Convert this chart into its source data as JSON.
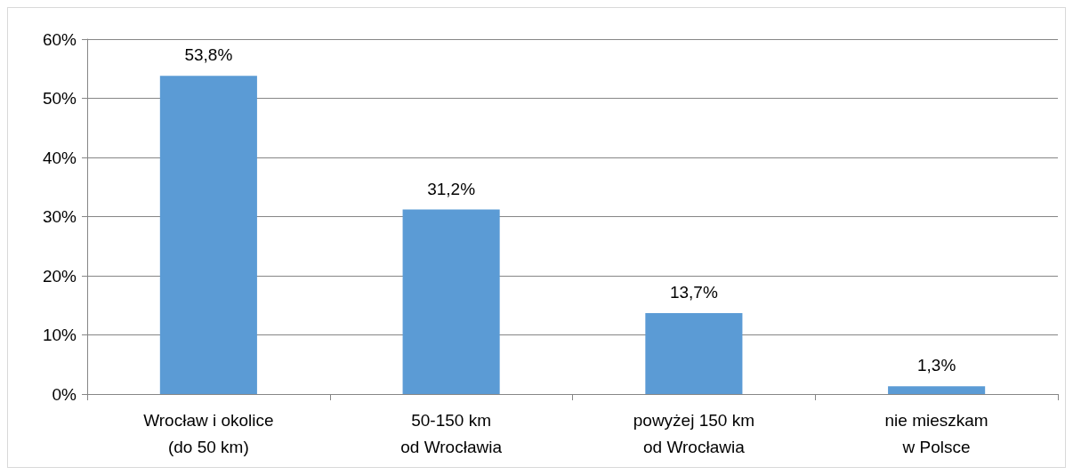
{
  "chart_data": {
    "type": "bar",
    "categories": [
      "Wrocław i okolice\n(do 50 km)",
      "50-150 km\nod Wrocławia",
      "powyżej 150 km\nod Wrocławia",
      "nie mieszkam\nw Polsce"
    ],
    "values": [
      53.8,
      31.2,
      13.7,
      1.3
    ],
    "value_labels": [
      "53,8%",
      "31,2%",
      "13,7%",
      "1,3%"
    ],
    "color": "#5b9bd5",
    "ylim": [
      0,
      60
    ],
    "yticks": [
      {
        "value": 0,
        "label": "0%"
      },
      {
        "value": 10,
        "label": "10%"
      },
      {
        "value": 20,
        "label": "20%"
      },
      {
        "value": 30,
        "label": "30%"
      },
      {
        "value": 40,
        "label": "40%"
      },
      {
        "value": 50,
        "label": "50%"
      },
      {
        "value": 60,
        "label": "60%"
      }
    ],
    "grid": "y"
  }
}
